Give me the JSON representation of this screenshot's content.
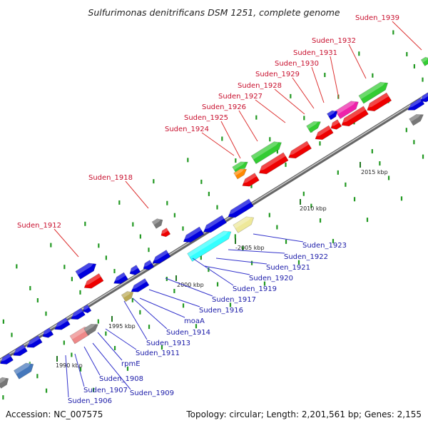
{
  "title": "Sulfurimonas denitrificans DSM 1251, complete genome",
  "footer": {
    "accession": "Accession: NC_007575",
    "summary": "Topology: circular; Length: 2,201,561 bp; Genes: 2,155"
  },
  "scale_labels": [
    "1990 kbp",
    "1995 kbp",
    "2000 kbp",
    "-2005 kbp",
    "2010 kbp",
    "2015 kbp"
  ],
  "labels_top": [
    "Suden_1912",
    "Suden_1918",
    "Suden_1924",
    "Suden_1925",
    "Suden_1926",
    "Suden_1927",
    "Suden_1928",
    "Suden_1929",
    "Suden_1930",
    "Suden_1931",
    "Suden_1932",
    "Suden_1939"
  ],
  "labels_bottom": [
    "Suden_1906",
    "Suden_1907",
    "Suden_1908",
    "Suden_1909",
    "rpmE",
    "Suden_1911",
    "Suden_1913",
    "Suden_1914",
    "moaA",
    "Suden_1916",
    "Suden_1917",
    "Suden_1919",
    "Suden_1920",
    "Suden_1921",
    "Suden_1922",
    "Suden_1923"
  ],
  "colors": {
    "blue": "#0000dd",
    "red": "#ee0000",
    "green": "#33cc33",
    "gray": "#777777",
    "cyan": "#33ffff",
    "pink": "#ee22aa",
    "khaki": "#eee899",
    "orange": "#ff8800",
    "steelblue": "#4477bb",
    "lightred": "#ee8888",
    "olive": "#bbaa55"
  }
}
